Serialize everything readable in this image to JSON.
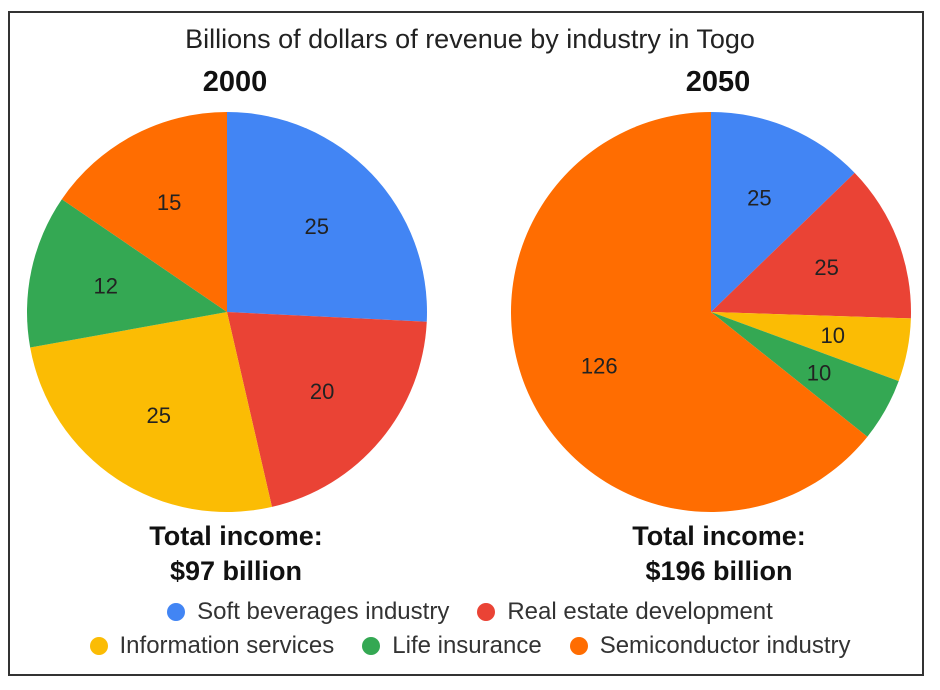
{
  "chart_data": [
    {
      "type": "pie",
      "title": "Billions of dollars of revenue by industry in Togo",
      "subtitle": "2000",
      "total_label": [
        "Total income:",
        "$97 billion"
      ],
      "slices": [
        {
          "label": "Soft beverages industry",
          "value": 25,
          "color": "#4285F4"
        },
        {
          "label": "Real estate development",
          "value": 20,
          "color": "#EA4335"
        },
        {
          "label": "Information services",
          "value": 25,
          "color": "#FBBC04"
        },
        {
          "label": "Life insurance",
          "value": 12,
          "color": "#34A853"
        },
        {
          "label": "Semiconductor industry",
          "value": 15,
          "color": "#FF6D01"
        }
      ]
    },
    {
      "type": "pie",
      "title": "Billions of dollars of revenue by industry in Togo",
      "subtitle": "2050",
      "total_label": [
        "Total income:",
        "$196 billion"
      ],
      "slices": [
        {
          "label": "Soft beverages industry",
          "value": 25,
          "color": "#4285F4"
        },
        {
          "label": "Real estate development",
          "value": 25,
          "color": "#EA4335"
        },
        {
          "label": "Information services",
          "value": 10,
          "color": "#FBBC04"
        },
        {
          "label": "Life insurance",
          "value": 10,
          "color": "#34A853"
        },
        {
          "label": "Semiconductor industry",
          "value": 126,
          "color": "#FF6D01"
        }
      ]
    }
  ],
  "title": "Billions of dollars of revenue by industry in Togo",
  "pie_left": {
    "year": "2000",
    "total_line1": "Total income:",
    "total_line2": "$97 billion"
  },
  "pie_right": {
    "year": "2050",
    "total_line1": "Total income:",
    "total_line2": "$196 billion"
  },
  "legend": {
    "row1": [
      {
        "label": "Soft beverages industry",
        "color": "#4285F4"
      },
      {
        "label": "Real estate development",
        "color": "#EA4335"
      }
    ],
    "row2": [
      {
        "label": "Information services",
        "color": "#FBBC04"
      },
      {
        "label": "Life insurance",
        "color": "#34A853"
      },
      {
        "label": "Semiconductor industry",
        "color": "#FF6D01"
      }
    ]
  }
}
